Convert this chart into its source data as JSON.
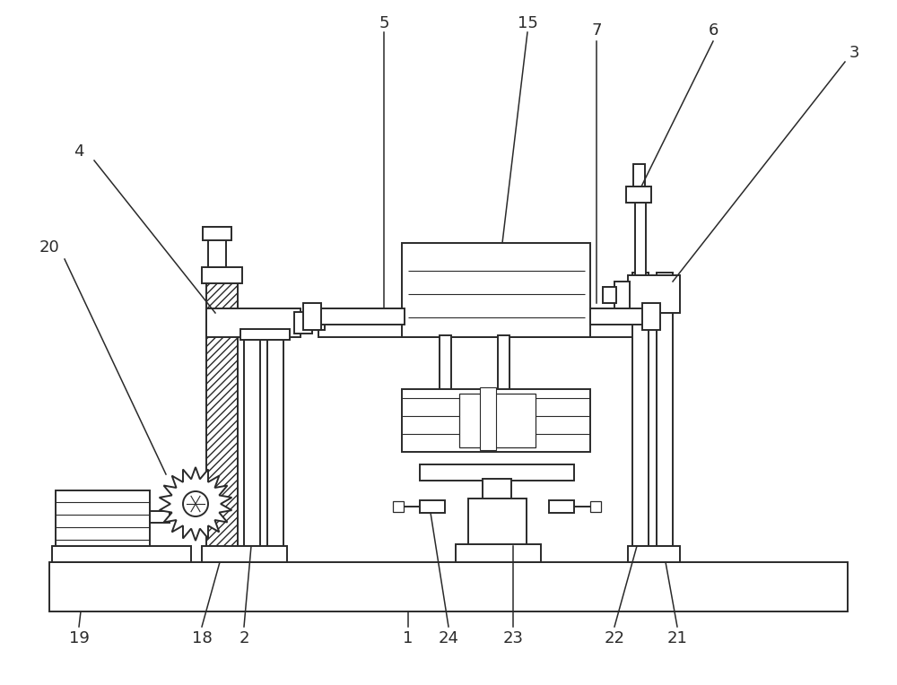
{
  "bg_color": "white",
  "line_color": "#2a2a2a",
  "label_color": "#1a1a1a",
  "lw": 1.4,
  "thin_lw": 0.8,
  "fig_w": 10.0,
  "fig_h": 7.64,
  "dpi": 100
}
